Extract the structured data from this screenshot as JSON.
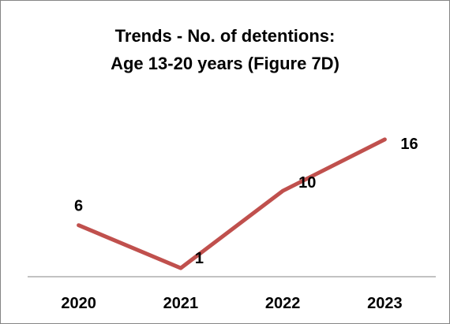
{
  "chart_data": {
    "type": "line",
    "title_lines": [
      "Trends - No. of detentions:",
      "Age 13-20 years (Figure 7D)"
    ],
    "categories": [
      "2020",
      "2021",
      "2022",
      "2023"
    ],
    "series": [
      {
        "values": [
          6,
          1,
          10,
          16
        ],
        "color": "#c0504d"
      }
    ],
    "data_labels": [
      "6",
      "1",
      "10",
      "16"
    ],
    "ylim": [
      0,
      17
    ],
    "grid": false,
    "legend": "none",
    "xlabel": "",
    "ylabel": ""
  }
}
